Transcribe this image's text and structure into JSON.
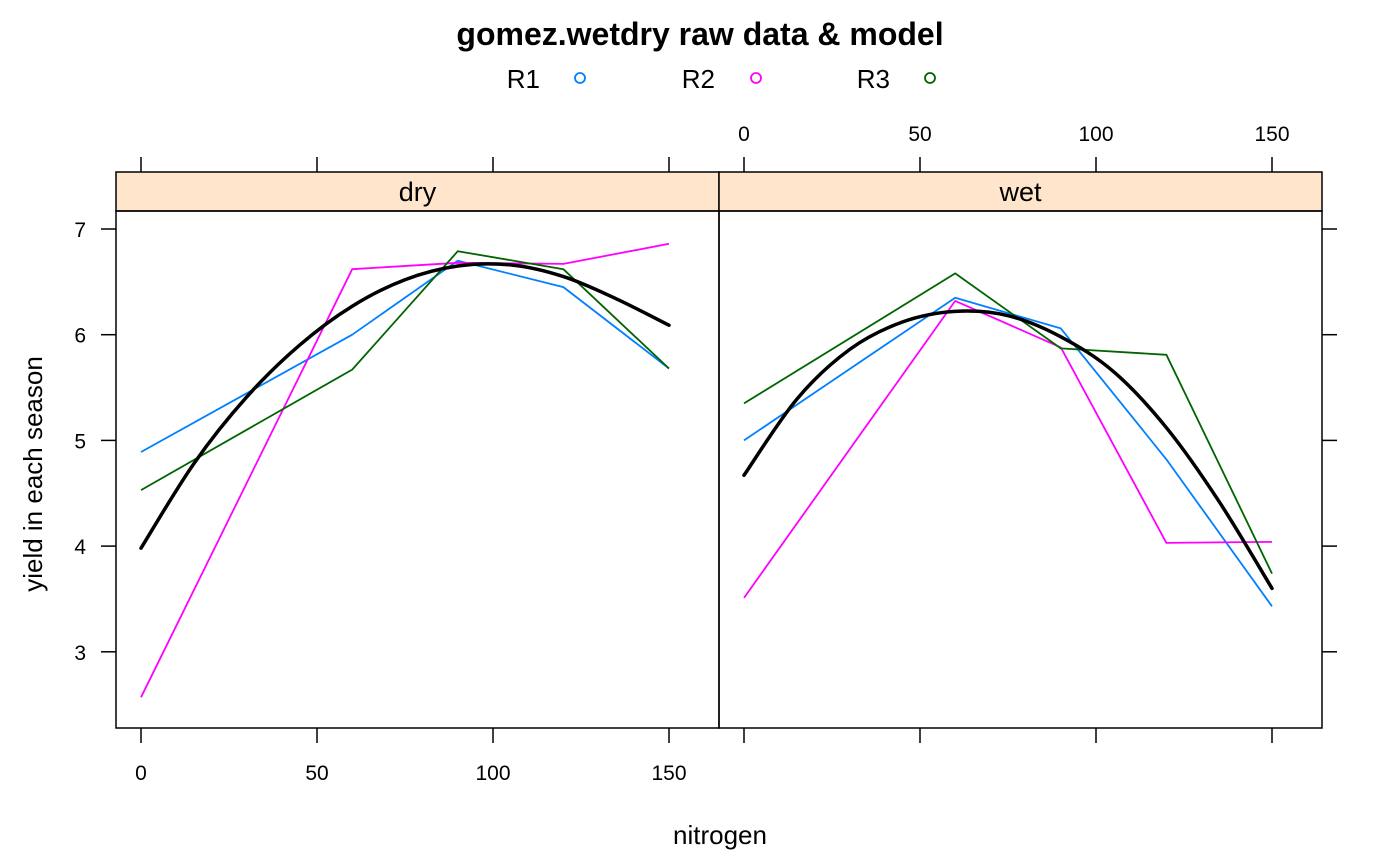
{
  "chart_data": {
    "type": "line",
    "title": "gomez.wetdry raw data & model",
    "xlabel": "nitrogen",
    "ylabel": "yield in each season",
    "xlim": [
      -10,
      160
    ],
    "ylim": [
      2.25,
      7.15
    ],
    "x_ticks": [
      0,
      50,
      100,
      150
    ],
    "y_ticks": [
      3,
      4,
      5,
      6,
      7
    ],
    "legend": {
      "position": "top",
      "entries": [
        {
          "label": "R1",
          "color": "#0080ff"
        },
        {
          "label": "R2",
          "color": "#ff00ff"
        },
        {
          "label": "R3",
          "color": "#006400"
        }
      ]
    },
    "strip_color": "#ffe5cc",
    "panels": [
      {
        "strip": "dry",
        "series": [
          {
            "name": "R1",
            "color": "#0080ff",
            "x": [
              0,
              60,
              90,
              120,
              150
            ],
            "y": [
              4.89,
              6.0,
              6.7,
              6.45,
              5.68
            ]
          },
          {
            "name": "R2",
            "color": "#ff00ff",
            "x": [
              0,
              60,
              90,
              120,
              150
            ],
            "y": [
              2.57,
              6.62,
              6.68,
              6.67,
              6.86
            ]
          },
          {
            "name": "R3",
            "color": "#006400",
            "x": [
              0,
              60,
              90,
              120,
              150
            ],
            "y": [
              4.53,
              5.67,
              6.79,
              6.62,
              5.68
            ]
          }
        ],
        "model": {
          "color": "#000000",
          "x": [
            0,
            15,
            30,
            45,
            60,
            75,
            90,
            105,
            120,
            135,
            150
          ],
          "y": [
            3.98,
            4.78,
            5.41,
            5.9,
            6.27,
            6.52,
            6.65,
            6.66,
            6.55,
            6.34,
            6.09
          ]
        }
      },
      {
        "strip": "wet",
        "series": [
          {
            "name": "R1",
            "color": "#0080ff",
            "x": [
              0,
              60,
              90,
              120,
              150
            ],
            "y": [
              5.0,
              6.35,
              6.06,
              4.82,
              3.43
            ]
          },
          {
            "name": "R2",
            "color": "#ff00ff",
            "x": [
              0,
              60,
              90,
              120,
              150
            ],
            "y": [
              3.51,
              6.32,
              5.88,
              4.03,
              4.04
            ]
          },
          {
            "name": "R3",
            "color": "#006400",
            "x": [
              0,
              60,
              90,
              120,
              150
            ],
            "y": [
              5.35,
              6.58,
              5.87,
              5.81,
              3.74
            ]
          }
        ],
        "model": {
          "color": "#000000",
          "x": [
            0,
            15,
            30,
            45,
            60,
            75,
            90,
            105,
            120,
            135,
            150
          ],
          "y": [
            4.67,
            5.39,
            5.86,
            6.12,
            6.22,
            6.18,
            5.98,
            5.65,
            5.12,
            4.42,
            3.6
          ]
        }
      }
    ]
  }
}
